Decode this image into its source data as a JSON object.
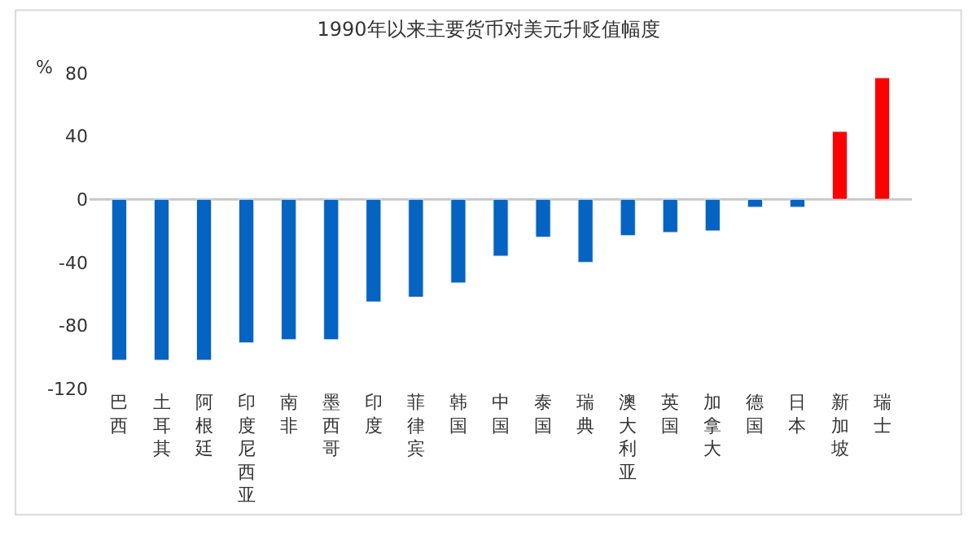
{
  "chart_data": {
    "type": "bar",
    "title": "1990年以来主要货币对美元升贬值幅度",
    "ylabel": "%",
    "categories": [
      "巴西",
      "土耳其",
      "阿根廷",
      "印度尼西亚",
      "南非",
      "墨西哥",
      "印度",
      "菲律宾",
      "韩国",
      "中国",
      "泰国",
      "瑞典",
      "澳大利亚",
      "英国",
      "加拿大",
      "德国",
      "日本",
      "新加坡",
      "瑞士"
    ],
    "values": [
      -102,
      -102,
      -102,
      -91,
      -89,
      -89,
      -65,
      -62,
      -53,
      -36,
      -24,
      -40,
      -23,
      -21,
      -20,
      -5,
      -5,
      43,
      77
    ],
    "colors": [
      "#0563c1",
      "#0563c1",
      "#0563c1",
      "#0563c1",
      "#0563c1",
      "#0563c1",
      "#0563c1",
      "#0563c1",
      "#0563c1",
      "#0563c1",
      "#0563c1",
      "#0563c1",
      "#0563c1",
      "#0563c1",
      "#0563c1",
      "#0563c1",
      "#0563c1",
      "#ff0000",
      "#ff0000"
    ],
    "ylim": [
      -120,
      80
    ],
    "yticks": [
      -120,
      -80,
      -40,
      0,
      40,
      80
    ],
    "grid": false,
    "ref_lines": [
      {
        "axis": "y",
        "value": 0,
        "color": "#c8c8c8"
      }
    ]
  }
}
